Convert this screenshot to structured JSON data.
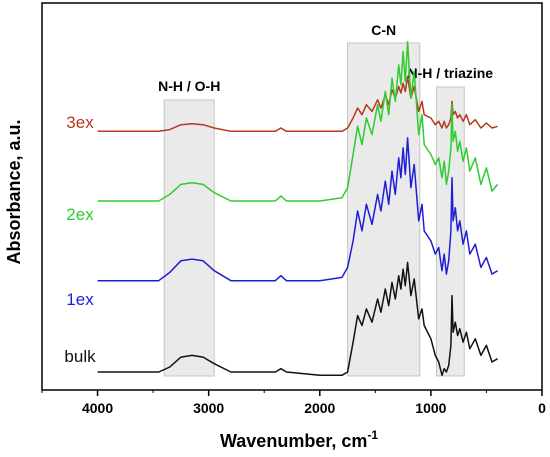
{
  "chart_data": {
    "type": "line",
    "xlabel": "Wavenumber, cm",
    "xlabel_sup": "-1",
    "ylabel": "Absorbance, a.u.",
    "xlim": [
      4500,
      0
    ],
    "x_ticks": [
      4000,
      3000,
      2000,
      1000,
      0
    ],
    "y_ticks_visible": false,
    "grid": false,
    "legend": "inline labels at left of each trace",
    "bands": [
      {
        "label": "N-H / O-H",
        "x_from": 3400,
        "x_to": 2950
      },
      {
        "label": "C-N",
        "x_from": 1750,
        "x_to": 1100
      },
      {
        "label": "N-H / triazine",
        "x_from": 950,
        "x_to": 700
      }
    ],
    "series": [
      {
        "name": "3ex",
        "color": "#b5391f",
        "x": [
          4000,
          3450,
          3350,
          3250,
          3150,
          3050,
          2950,
          2800,
          2400,
          2350,
          2300,
          2000,
          1800,
          1750,
          1700,
          1660,
          1620,
          1580,
          1530,
          1480,
          1450,
          1410,
          1380,
          1350,
          1320,
          1290,
          1270,
          1250,
          1230,
          1210,
          1180,
          1150,
          1110,
          1080,
          1060,
          1000,
          960,
          930,
          900,
          880,
          860,
          840,
          820,
          810,
          800,
          780,
          760,
          740,
          710,
          680,
          650,
          600,
          550,
          500,
          450,
          400
        ],
        "y": [
          0.0,
          0.0,
          0.01,
          0.04,
          0.045,
          0.04,
          0.02,
          0.0,
          0.0,
          0.02,
          0.0,
          0.0,
          0.0,
          0.02,
          0.08,
          0.14,
          0.1,
          0.16,
          0.12,
          0.19,
          0.14,
          0.22,
          0.16,
          0.25,
          0.2,
          0.27,
          0.23,
          0.29,
          0.24,
          0.33,
          0.2,
          0.27,
          0.12,
          0.18,
          0.1,
          0.08,
          0.04,
          0.06,
          0.02,
          0.06,
          0.02,
          0.04,
          0.08,
          0.18,
          0.1,
          0.12,
          0.08,
          0.1,
          0.06,
          0.1,
          0.04,
          0.07,
          0.02,
          0.05,
          0.02,
          0.03
        ]
      },
      {
        "name": "2ex",
        "color": "#2ecc2e",
        "x": [
          4000,
          3450,
          3350,
          3250,
          3150,
          3050,
          2950,
          2800,
          2400,
          2350,
          2300,
          2000,
          1800,
          1750,
          1700,
          1660,
          1620,
          1580,
          1530,
          1480,
          1450,
          1410,
          1380,
          1350,
          1320,
          1290,
          1270,
          1250,
          1230,
          1210,
          1180,
          1150,
          1110,
          1080,
          1060,
          1000,
          960,
          930,
          900,
          880,
          860,
          840,
          820,
          810,
          800,
          780,
          760,
          740,
          710,
          680,
          650,
          600,
          550,
          500,
          450,
          400
        ],
        "y": [
          0.0,
          0.0,
          0.04,
          0.1,
          0.11,
          0.1,
          0.05,
          0.0,
          0.0,
          0.03,
          0.0,
          0.0,
          0.02,
          0.08,
          0.28,
          0.45,
          0.34,
          0.5,
          0.4,
          0.58,
          0.48,
          0.66,
          0.52,
          0.74,
          0.6,
          0.82,
          0.7,
          0.9,
          0.72,
          0.96,
          0.62,
          0.78,
          0.4,
          0.52,
          0.34,
          0.28,
          0.22,
          0.26,
          0.14,
          0.24,
          0.1,
          0.18,
          0.32,
          0.58,
          0.36,
          0.42,
          0.3,
          0.36,
          0.24,
          0.32,
          0.18,
          0.26,
          0.1,
          0.2,
          0.06,
          0.1
        ]
      },
      {
        "name": "1ex",
        "color": "#1e1ed6",
        "x": [
          4000,
          3450,
          3350,
          3250,
          3150,
          3050,
          2950,
          2800,
          2400,
          2350,
          2300,
          2000,
          1800,
          1750,
          1700,
          1660,
          1620,
          1580,
          1530,
          1480,
          1450,
          1410,
          1380,
          1350,
          1320,
          1290,
          1270,
          1250,
          1230,
          1210,
          1180,
          1150,
          1110,
          1080,
          1060,
          1000,
          960,
          930,
          900,
          880,
          860,
          840,
          820,
          810,
          800,
          780,
          760,
          740,
          710,
          680,
          650,
          600,
          550,
          500,
          450,
          400
        ],
        "y": [
          0.0,
          0.0,
          0.05,
          0.12,
          0.13,
          0.12,
          0.06,
          0.0,
          0.0,
          0.03,
          0.0,
          0.0,
          0.02,
          0.08,
          0.24,
          0.42,
          0.3,
          0.46,
          0.34,
          0.52,
          0.42,
          0.6,
          0.46,
          0.66,
          0.52,
          0.74,
          0.62,
          0.8,
          0.64,
          0.86,
          0.56,
          0.7,
          0.36,
          0.46,
          0.3,
          0.24,
          0.16,
          0.2,
          0.06,
          0.16,
          0.04,
          0.12,
          0.3,
          0.62,
          0.36,
          0.44,
          0.3,
          0.36,
          0.22,
          0.3,
          0.16,
          0.22,
          0.08,
          0.14,
          0.04,
          0.06
        ]
      },
      {
        "name": "bulk",
        "color": "#111111",
        "x": [
          4000,
          3450,
          3350,
          3250,
          3150,
          3050,
          2950,
          2800,
          2400,
          2350,
          2300,
          2000,
          1800,
          1750,
          1700,
          1660,
          1620,
          1580,
          1530,
          1480,
          1450,
          1410,
          1380,
          1350,
          1320,
          1290,
          1270,
          1250,
          1230,
          1210,
          1180,
          1150,
          1110,
          1080,
          1060,
          1000,
          960,
          930,
          900,
          880,
          860,
          840,
          820,
          810,
          800,
          780,
          760,
          740,
          710,
          680,
          650,
          600,
          550,
          500,
          450,
          400
        ],
        "y": [
          0.0,
          0.0,
          0.03,
          0.09,
          0.1,
          0.09,
          0.05,
          0.0,
          0.0,
          0.02,
          0.0,
          -0.02,
          -0.02,
          0.0,
          0.18,
          0.34,
          0.28,
          0.38,
          0.3,
          0.44,
          0.36,
          0.5,
          0.4,
          0.54,
          0.44,
          0.58,
          0.5,
          0.62,
          0.52,
          0.66,
          0.46,
          0.56,
          0.32,
          0.38,
          0.28,
          0.2,
          0.1,
          0.06,
          -0.02,
          0.02,
          0.0,
          0.04,
          0.16,
          0.46,
          0.24,
          0.3,
          0.22,
          0.26,
          0.18,
          0.24,
          0.14,
          0.2,
          0.1,
          0.16,
          0.06,
          0.08
        ]
      }
    ],
    "series_offsets": [
      1.45,
      1.03,
      0.55,
      0.0
    ],
    "y_scale_note": ""
  }
}
